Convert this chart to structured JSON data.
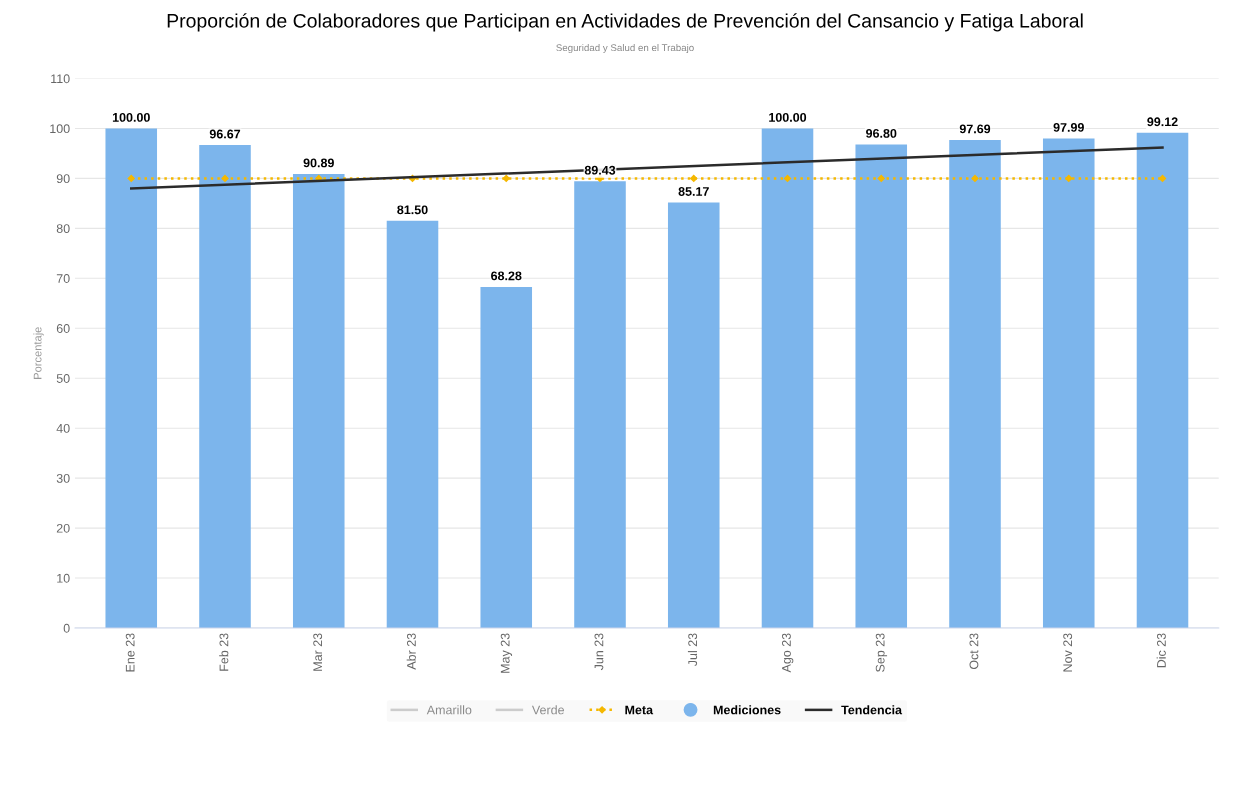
{
  "chart_data": {
    "type": "bar",
    "title": "Proporción de Colaboradores que Participan en Actividades de Prevención del Cansancio y Fatiga Laboral",
    "subtitle": "Seguridad y Salud en el Trabajo",
    "ylabel": "Porcentaje",
    "categories": [
      "Ene 23",
      "Feb 23",
      "Mar 23",
      "Abr 23",
      "May 23",
      "Jun 23",
      "Jul 23",
      "Ago 23",
      "Sep 23",
      "Oct 23",
      "Nov 23",
      "Dic 23"
    ],
    "series": [
      {
        "name": "Amarillo",
        "type": "line",
        "color": "#cccccc",
        "values": [
          null,
          null,
          null,
          null,
          null,
          null,
          null,
          null,
          null,
          null,
          null,
          null
        ]
      },
      {
        "name": "Verde",
        "type": "line",
        "color": "#cccccc",
        "values": [
          null,
          null,
          null,
          null,
          null,
          null,
          null,
          null,
          null,
          null,
          null,
          null
        ]
      },
      {
        "name": "Meta",
        "type": "line",
        "color": "#f5b800",
        "line_style": "dotted",
        "marker": "diamond",
        "values": [
          90,
          90,
          90,
          90,
          90,
          90,
          90,
          90,
          90,
          90,
          90,
          90
        ]
      },
      {
        "name": "Mediciones",
        "color": "#7cb5ec",
        "values": [
          100.0,
          96.67,
          90.89,
          81.5,
          68.28,
          89.43,
          85.17,
          100.0,
          96.8,
          97.69,
          97.99,
          99.12
        ],
        "value_labels": [
          "100.00",
          "96.67",
          "90.89",
          "81.50",
          "68.28",
          "89.43",
          "85.17",
          "100.00",
          "96.80",
          "97.69",
          "97.99",
          "99.12"
        ]
      },
      {
        "name": "Tendencia",
        "type": "line",
        "color": "#2b2b2b",
        "line_style": "solid",
        "values": [
          88.0,
          null,
          null,
          null,
          null,
          null,
          null,
          null,
          null,
          null,
          null,
          96.2
        ]
      }
    ],
    "ylim": [
      0,
      110
    ],
    "yticks": [
      0,
      10,
      20,
      30,
      40,
      50,
      60,
      70,
      80,
      90,
      100,
      110
    ],
    "grid": "y",
    "legend": "bottom"
  }
}
